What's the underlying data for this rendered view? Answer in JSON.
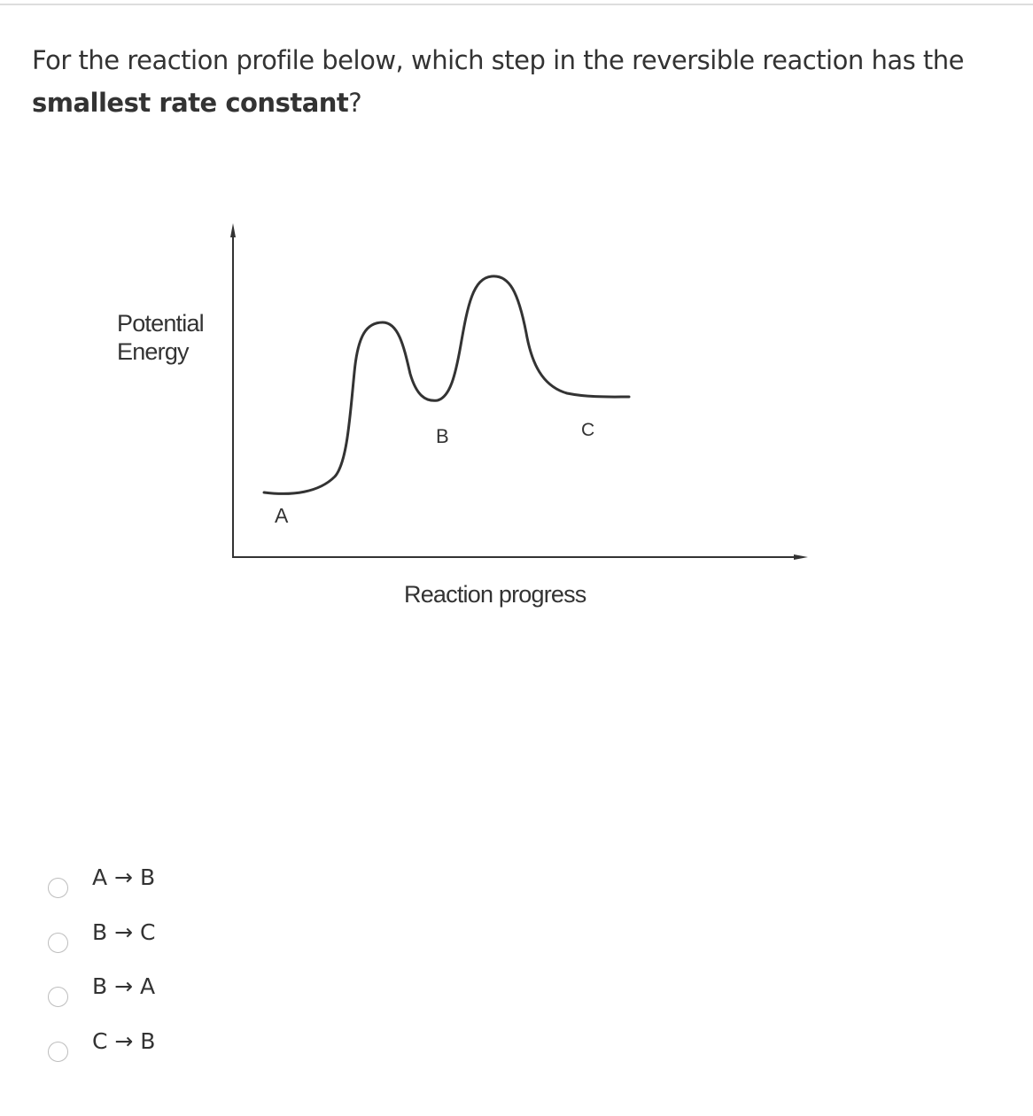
{
  "question": {
    "text_before": "For the reaction profile below, which step in the reversible reaction has the ",
    "text_bold": "smallest rate constant",
    "text_after": "?"
  },
  "figure": {
    "y_axis_label_line1": "Potential",
    "y_axis_label_line2": "Energy",
    "x_axis_label": "Reaction progress",
    "points": {
      "a": "A",
      "b": "B",
      "c": "C"
    }
  },
  "options": [
    {
      "label": "A → B",
      "selected": false
    },
    {
      "label": "B → C",
      "selected": false
    },
    {
      "label": "B → A",
      "selected": false
    },
    {
      "label": "C → B",
      "selected": false
    }
  ]
}
